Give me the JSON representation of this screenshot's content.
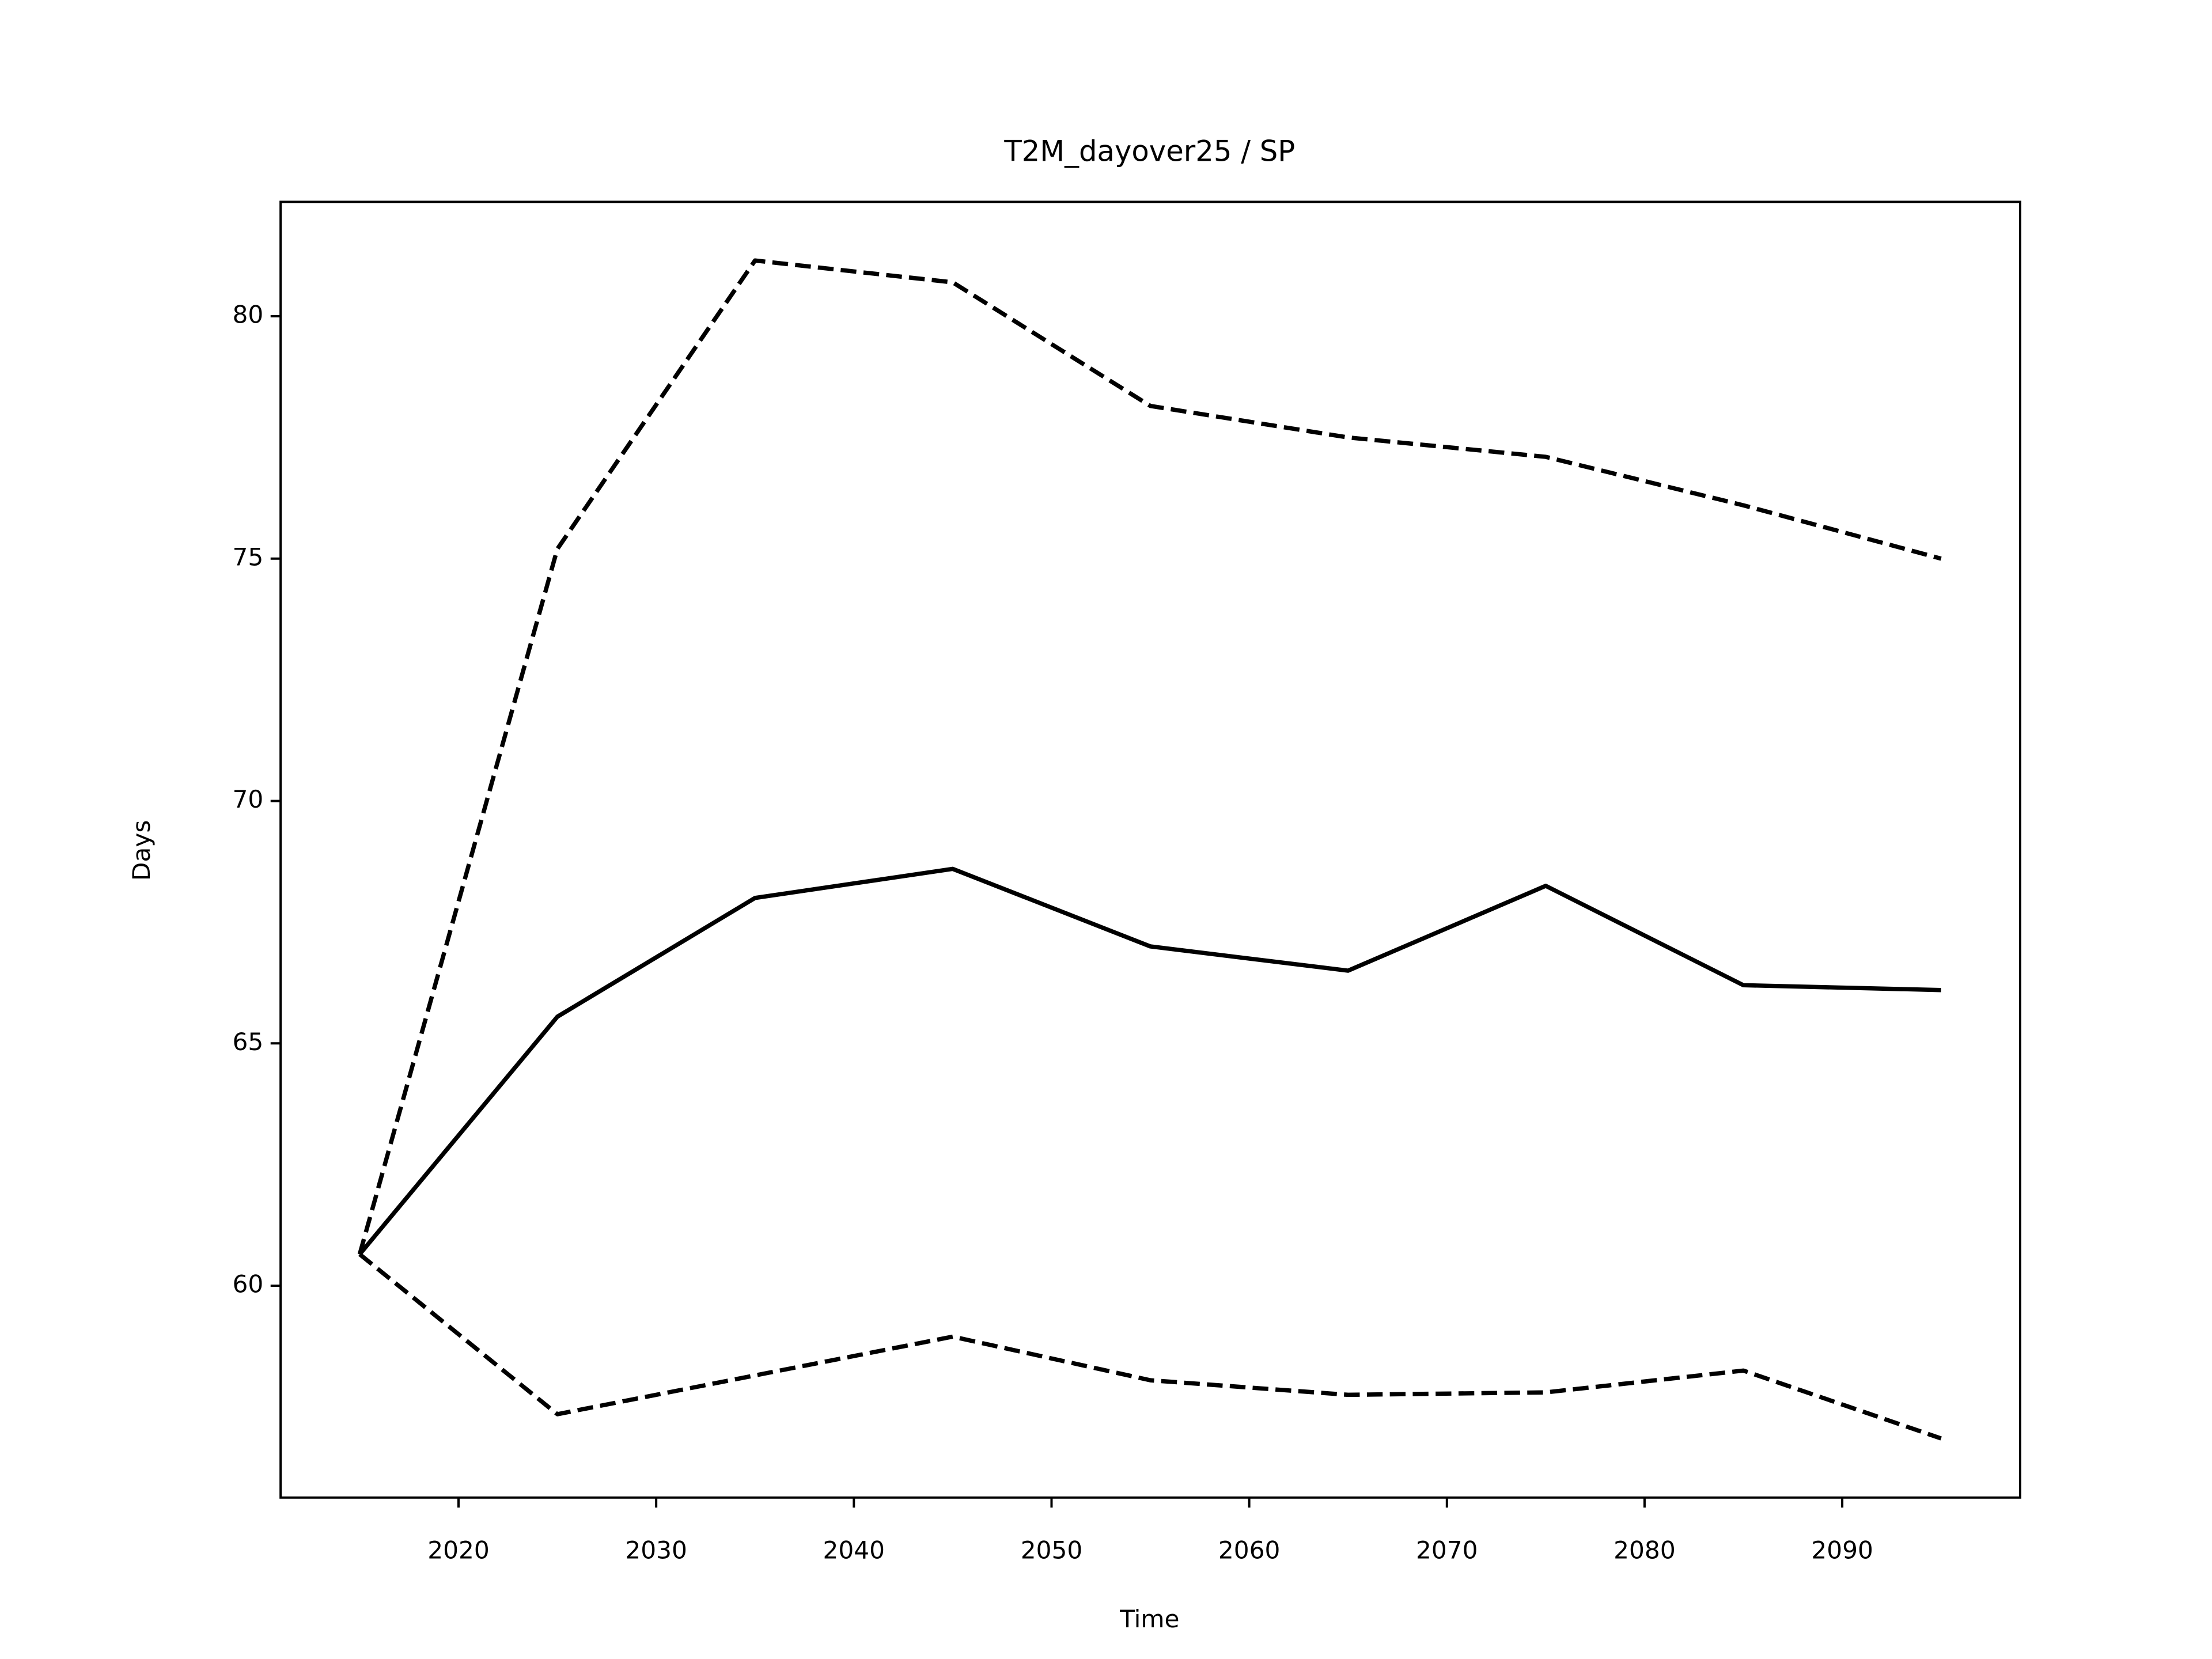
{
  "chart_data": {
    "type": "line",
    "title": "T2M_dayover25 / SP",
    "x_label": "Time",
    "y_label": "Days",
    "x": [
      2015,
      2025,
      2035,
      2045,
      2055,
      2065,
      2075,
      2085,
      2095
    ],
    "series": [
      {
        "color": "#000000",
        "linestyle": "solid",
        "values": [
          60.65,
          65.55,
          68.0,
          68.6,
          67.0,
          66.5,
          68.25,
          66.2,
          66.1
        ]
      },
      {
        "color": "#000000",
        "linestyle": "dashed",
        "values": [
          60.65,
          75.2,
          81.15,
          80.7,
          78.15,
          77.5,
          77.1,
          76.1,
          75.0
        ]
      },
      {
        "color": "#000000",
        "linestyle": "dashed",
        "values": [
          60.65,
          57.35,
          58.15,
          58.95,
          58.05,
          57.75,
          57.8,
          58.25,
          56.85
        ]
      }
    ],
    "xlim": [
      2011,
      2099
    ],
    "ylim": [
      55.63,
      82.36
    ],
    "xticks": [
      2020,
      2030,
      2040,
      2050,
      2060,
      2070,
      2080,
      2090
    ],
    "yticks": [
      60,
      65,
      70,
      75,
      80
    ],
    "grid": false
  }
}
